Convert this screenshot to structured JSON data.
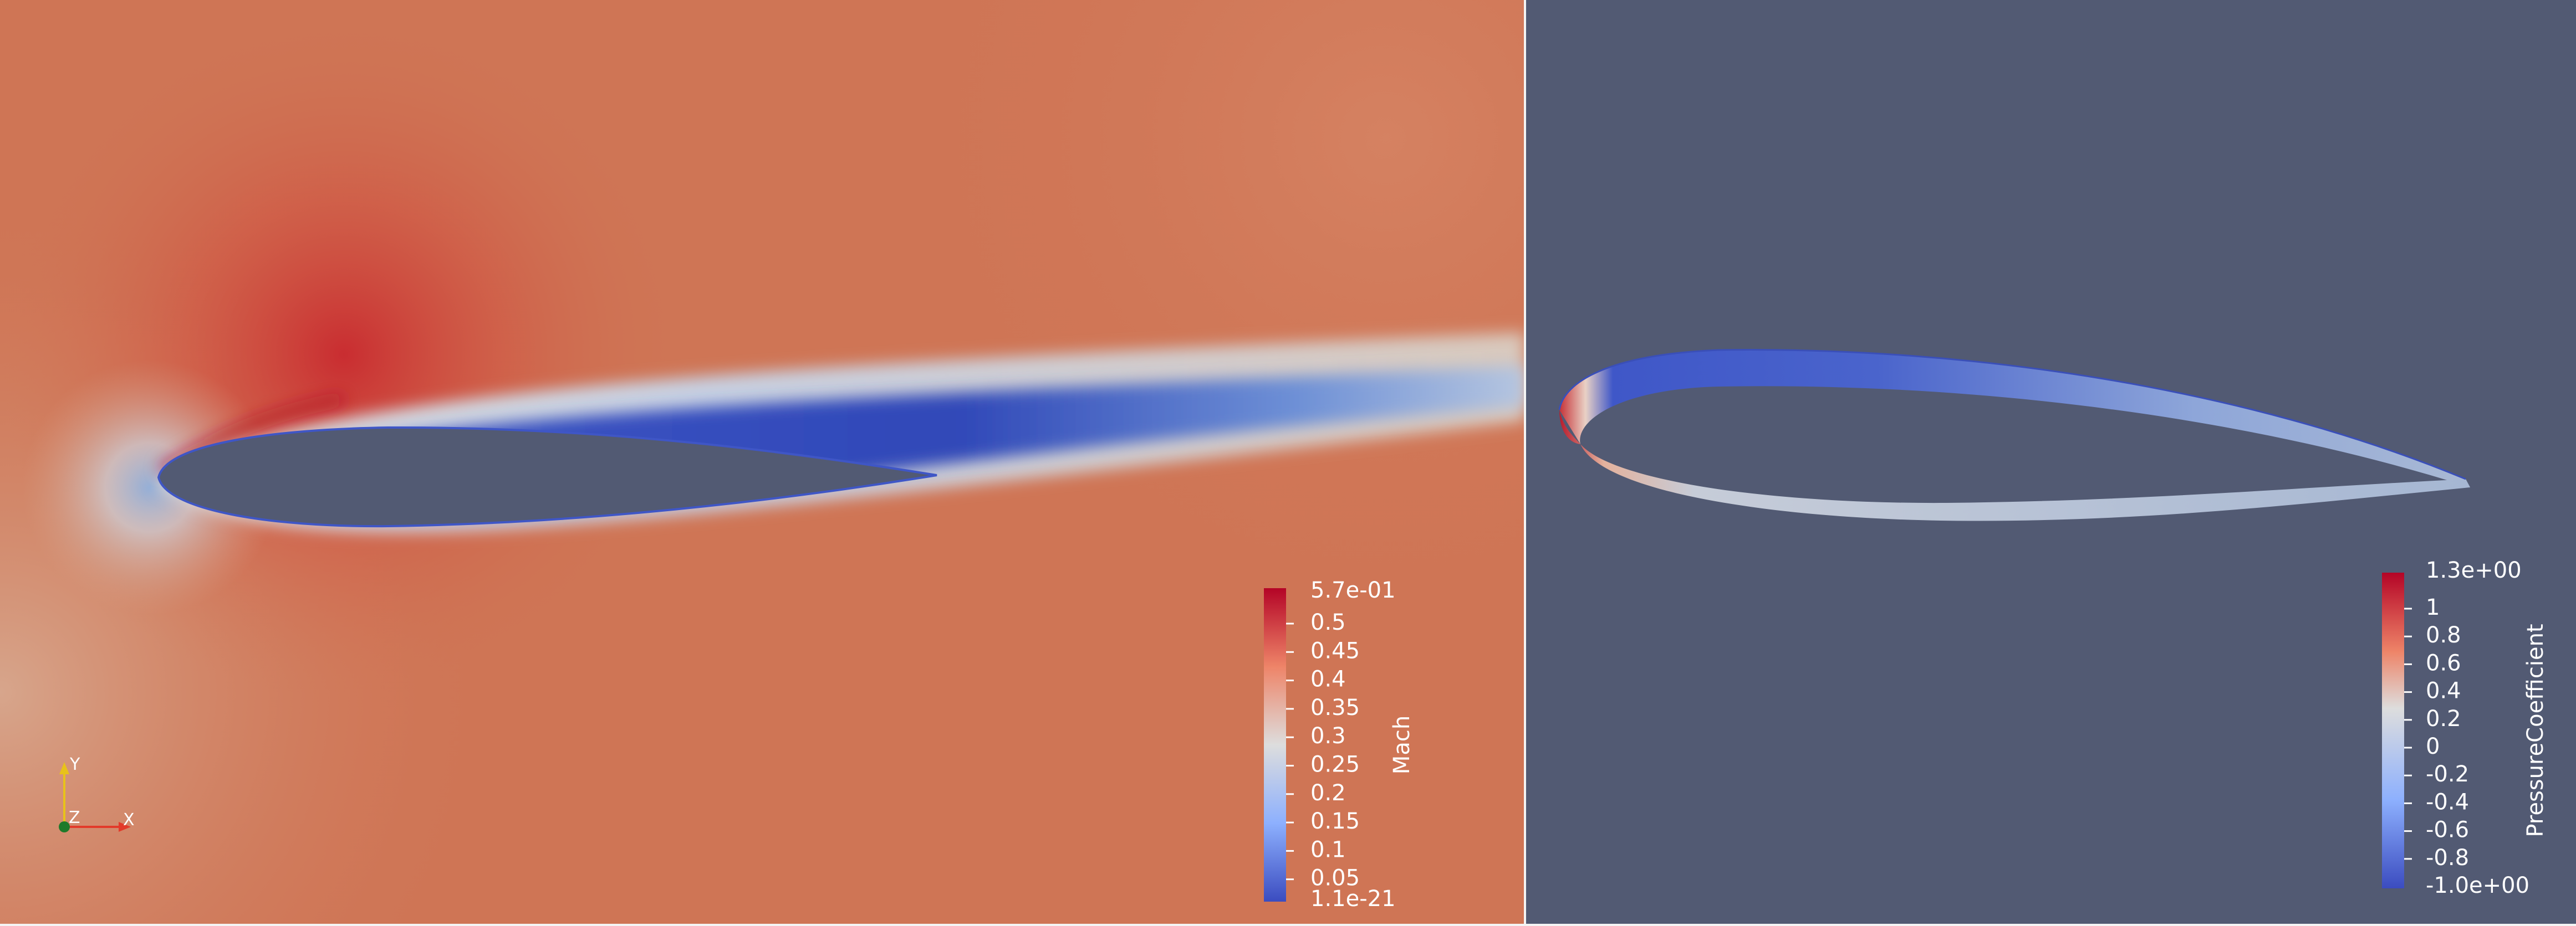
{
  "left_view": {
    "colorbar": {
      "title": "Mach",
      "range_max": "5.7e-01",
      "range_min": "1.1e-21",
      "ticks": [
        "0.5",
        "0.45",
        "0.4",
        "0.35",
        "0.3",
        "0.25",
        "0.2",
        "0.15",
        "0.1",
        "0.05"
      ],
      "color_max": "#b40426",
      "color_mid": "#dddddd",
      "color_min": "#3b4cc0"
    },
    "axes_triad": {
      "x_label": "X",
      "y_label": "Y",
      "z_label": "Z"
    }
  },
  "right_view": {
    "background": "#525a73",
    "colorbar": {
      "title": "PressureCoefficient",
      "range_max": "1.3e+00",
      "range_min": "-1.0e+00",
      "ticks": [
        "1",
        "0.8",
        "0.6",
        "0.4",
        "0.2",
        "0",
        "-0.2",
        "-0.4",
        "-0.6",
        "-0.8"
      ]
    }
  }
}
